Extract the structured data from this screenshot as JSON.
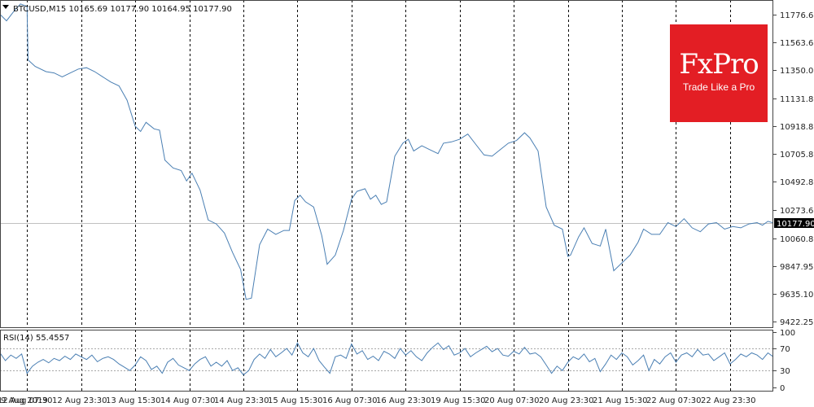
{
  "header": {
    "symbol_line": "BTCUSD,M15  10165.69 10177.90 10164.95 10177.90",
    "rsi_line": "RSI(14) 55.4557"
  },
  "logo": {
    "word": "FxPro",
    "tagline": "Trade Like a Pro"
  },
  "colors": {
    "line": "#4a7fb3",
    "price_tag": "#000000",
    "logo": "#e31e24"
  },
  "chart_data": [
    {
      "type": "line",
      "title": "BTCUSD,M15",
      "ohlc": {
        "open": 10165.69,
        "high": 10177.9,
        "low": 10164.95,
        "close": 10177.9
      },
      "current_price": 10177.9,
      "current_price_label": "10177.90",
      "ylim": [
        9370,
        11890
      ],
      "y_ticks": [
        {
          "value": 11776.65,
          "label": "11776.65"
        },
        {
          "value": 11563.65,
          "label": "11563.65"
        },
        {
          "value": 11350.0,
          "label": "11350.00"
        },
        {
          "value": 11131.85,
          "label": "11131.85"
        },
        {
          "value": 10918.85,
          "label": "10918.85"
        },
        {
          "value": 10705.85,
          "label": "10705.85"
        },
        {
          "value": 10492.85,
          "label": "10492.85"
        },
        {
          "value": 10273.65,
          "label": "10273.65"
        },
        {
          "value": 10060.8,
          "label": "10060.80"
        },
        {
          "value": 9847.95,
          "label": "9847.95"
        },
        {
          "value": 9635.1,
          "label": "9635.10"
        },
        {
          "value": 9422.25,
          "label": "9422.25"
        }
      ],
      "x_labels": [
        "9 Aug 2019",
        "12 Aug 07:30",
        "12 Aug 23:30",
        "13 Aug 15:30",
        "14 Aug 07:30",
        "14 Aug 23:30",
        "15 Aug 15:30",
        "16 Aug 07:30",
        "16 Aug 23:30",
        "19 Aug 15:30",
        "20 Aug 07:30",
        "20 Aug 23:30",
        "21 Aug 15:30",
        "22 Aug 07:30",
        "22 Aug 23:30"
      ],
      "x_span": [
        0,
        14.3
      ],
      "session_separators": [
        0.5,
        1.5,
        2.5,
        3.5,
        4.5,
        5.5,
        6.5,
        7.5,
        8.5,
        9.5,
        10.5,
        11.5,
        12.5,
        13.5
      ],
      "grid": false,
      "series": [
        {
          "x": [
            0,
            0.12,
            0.25,
            0.38,
            0.5,
            0.52,
            0.65,
            0.85,
            1.0,
            1.15,
            1.3,
            1.45,
            1.6,
            1.75,
            1.9,
            2.05,
            2.2,
            2.35,
            2.5,
            2.6,
            2.7,
            2.85,
            2.95,
            3.05,
            3.2,
            3.35,
            3.45,
            3.55,
            3.7,
            3.85,
            4.0,
            4.15,
            4.3,
            4.45,
            4.55,
            4.65,
            4.8,
            4.95,
            5.1,
            5.25,
            5.35,
            5.45,
            5.55,
            5.65,
            5.8,
            5.95,
            6.05,
            6.2,
            6.35,
            6.5,
            6.6,
            6.75,
            6.85,
            6.95,
            7.05,
            7.15,
            7.3,
            7.45,
            7.55,
            7.65,
            7.8,
            7.95,
            8.1,
            8.2,
            8.35,
            8.5,
            8.65,
            8.8,
            8.95,
            9.1,
            9.25,
            9.4,
            9.55,
            9.7,
            9.8,
            9.95,
            10.1,
            10.25,
            10.4,
            10.5,
            10.55,
            10.7,
            10.8,
            10.95,
            11.1,
            11.2,
            11.35,
            11.5,
            11.65,
            11.8,
            11.9,
            12.05,
            12.2,
            12.35,
            12.5,
            12.65,
            12.8,
            12.95,
            13.1,
            13.25,
            13.4,
            13.55,
            13.7,
            13.85,
            14.0,
            14.1,
            14.2,
            14.3
          ],
          "y": [
            11780,
            11730,
            11800,
            11860,
            11840,
            11430,
            11380,
            11340,
            11330,
            11300,
            11330,
            11360,
            11370,
            11340,
            11300,
            11260,
            11230,
            11120,
            10920,
            10880,
            10950,
            10900,
            10890,
            10660,
            10600,
            10580,
            10500,
            10560,
            10430,
            10200,
            10170,
            10100,
            9950,
            9820,
            9590,
            9600,
            10010,
            10130,
            10090,
            10120,
            10120,
            10350,
            10390,
            10340,
            10300,
            10080,
            9860,
            9930,
            10120,
            10360,
            10420,
            10440,
            10360,
            10390,
            10320,
            10340,
            10690,
            10790,
            10820,
            10730,
            10770,
            10740,
            10710,
            10790,
            10800,
            10820,
            10860,
            10780,
            10700,
            10690,
            10740,
            10790,
            10810,
            10870,
            10830,
            10730,
            10300,
            10160,
            10130,
            9920,
            9930,
            10070,
            10140,
            10020,
            10000,
            10130,
            9810,
            9870,
            9930,
            10030,
            10130,
            10090,
            10090,
            10180,
            10150,
            10210,
            10140,
            10110,
            10170,
            10180,
            10130,
            10150,
            10140,
            10170,
            10180,
            10160,
            10190,
            10177.9
          ]
        }
      ]
    },
    {
      "type": "line",
      "title": "RSI(14)",
      "value_label": "55.4557",
      "ylim": [
        -8,
        104
      ],
      "y_ticks": [
        {
          "value": 100,
          "label": "100"
        },
        {
          "value": 70,
          "label": "70"
        },
        {
          "value": 30,
          "label": "30"
        },
        {
          "value": 0,
          "label": "0"
        }
      ],
      "levels": [
        30,
        70
      ],
      "series": [
        {
          "x": [
            0,
            0.1,
            0.2,
            0.3,
            0.4,
            0.5,
            0.6,
            0.7,
            0.8,
            0.9,
            1.0,
            1.1,
            1.2,
            1.3,
            1.4,
            1.5,
            1.6,
            1.7,
            1.8,
            1.9,
            2.0,
            2.1,
            2.2,
            2.3,
            2.4,
            2.5,
            2.6,
            2.7,
            2.8,
            2.9,
            3.0,
            3.1,
            3.2,
            3.3,
            3.4,
            3.5,
            3.6,
            3.7,
            3.8,
            3.9,
            4.0,
            4.1,
            4.2,
            4.3,
            4.4,
            4.5,
            4.6,
            4.7,
            4.8,
            4.9,
            5.0,
            5.1,
            5.2,
            5.3,
            5.4,
            5.5,
            5.6,
            5.7,
            5.8,
            5.9,
            6.0,
            6.1,
            6.2,
            6.3,
            6.4,
            6.5,
            6.6,
            6.7,
            6.8,
            6.9,
            7.0,
            7.1,
            7.2,
            7.3,
            7.4,
            7.5,
            7.6,
            7.7,
            7.8,
            7.9,
            8.0,
            8.1,
            8.2,
            8.3,
            8.4,
            8.5,
            8.6,
            8.7,
            8.8,
            8.9,
            9.0,
            9.1,
            9.2,
            9.3,
            9.4,
            9.5,
            9.6,
            9.7,
            9.8,
            9.9,
            10.0,
            10.1,
            10.2,
            10.3,
            10.4,
            10.5,
            10.6,
            10.7,
            10.8,
            10.9,
            11.0,
            11.1,
            11.2,
            11.3,
            11.4,
            11.5,
            11.6,
            11.7,
            11.8,
            11.9,
            12.0,
            12.1,
            12.2,
            12.3,
            12.4,
            12.5,
            12.6,
            12.7,
            12.8,
            12.9,
            13.0,
            13.1,
            13.2,
            13.3,
            13.4,
            13.5,
            13.6,
            13.7,
            13.8,
            13.9,
            14.0,
            14.1,
            14.2,
            14.3
          ],
          "y": [
            62,
            48,
            58,
            52,
            60,
            25,
            38,
            45,
            50,
            44,
            52,
            48,
            56,
            50,
            60,
            55,
            50,
            58,
            46,
            52,
            55,
            50,
            42,
            36,
            30,
            40,
            55,
            48,
            32,
            38,
            25,
            45,
            52,
            40,
            35,
            30,
            42,
            50,
            55,
            38,
            45,
            38,
            48,
            30,
            35,
            22,
            30,
            50,
            60,
            52,
            68,
            55,
            62,
            70,
            58,
            80,
            62,
            55,
            70,
            48,
            36,
            25,
            55,
            58,
            52,
            78,
            60,
            66,
            50,
            56,
            48,
            65,
            60,
            52,
            70,
            58,
            66,
            55,
            48,
            62,
            72,
            80,
            68,
            75,
            58,
            62,
            70,
            55,
            62,
            68,
            74,
            64,
            70,
            58,
            56,
            65,
            60,
            72,
            60,
            62,
            55,
            40,
            25,
            38,
            30,
            45,
            55,
            50,
            60,
            46,
            52,
            28,
            42,
            58,
            50,
            62,
            55,
            40,
            48,
            58,
            30,
            50,
            42,
            55,
            62,
            45,
            58,
            62,
            55,
            68,
            58,
            60,
            48,
            55,
            62,
            42,
            50,
            60,
            55,
            62,
            58,
            50,
            62,
            55
          ]
        }
      ]
    }
  ]
}
